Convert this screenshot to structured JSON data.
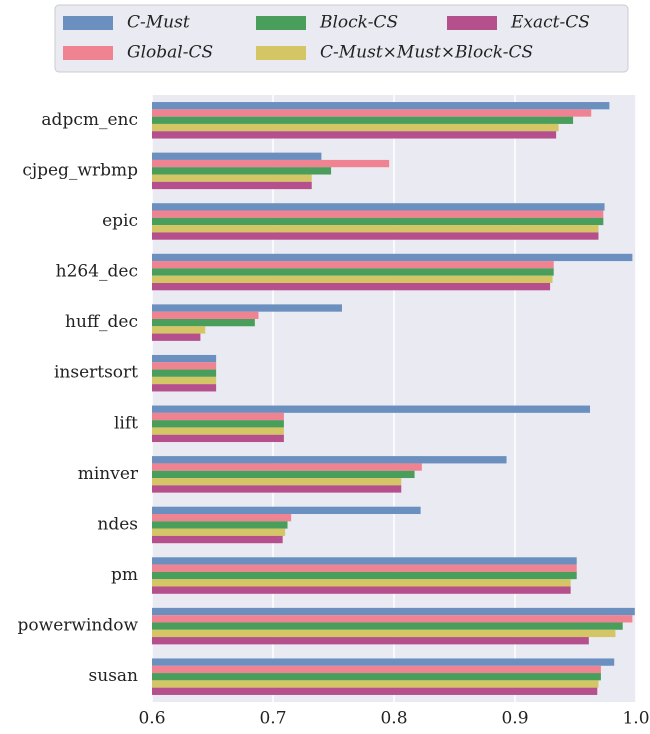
{
  "chart_data": {
    "type": "hbar",
    "categories": [
      "adpcm_enc",
      "cjpeg_wrbmp",
      "epic",
      "h264_dec",
      "huff_dec",
      "insertsort",
      "lift",
      "minver",
      "ndes",
      "pm",
      "powerwindow",
      "susan"
    ],
    "series": [
      {
        "name": "C-Must",
        "color": "#6b8fbf",
        "values": [
          0.978,
          0.74,
          0.974,
          0.997,
          0.757,
          0.653,
          0.962,
          0.893,
          0.822,
          0.951,
          0.999,
          0.982
        ]
      },
      {
        "name": "Global-CS",
        "color": "#f08391",
        "values": [
          0.963,
          0.796,
          0.973,
          0.932,
          0.688,
          0.653,
          0.709,
          0.823,
          0.715,
          0.951,
          0.997,
          0.971
        ]
      },
      {
        "name": "Block-CS",
        "color": "#4a9e5c",
        "values": [
          0.948,
          0.748,
          0.973,
          0.932,
          0.685,
          0.653,
          0.709,
          0.817,
          0.712,
          0.951,
          0.989,
          0.971
        ]
      },
      {
        "name": "C-Must×Must×Block-CS",
        "color": "#d4c565",
        "values": [
          0.936,
          0.732,
          0.969,
          0.931,
          0.644,
          0.653,
          0.709,
          0.806,
          0.71,
          0.946,
          0.983,
          0.969
        ]
      },
      {
        "name": "Exact-CS",
        "color": "#b5508c",
        "values": [
          0.934,
          0.732,
          0.969,
          0.929,
          0.64,
          0.653,
          0.709,
          0.806,
          0.708,
          0.946,
          0.961,
          0.968
        ]
      }
    ],
    "xlim": [
      0.6,
      1.0
    ],
    "xticks": [
      0.6,
      0.7,
      0.8,
      0.9,
      {
        "value": 1.0,
        "label": "1.0"
      }
    ],
    "grid": true
  }
}
